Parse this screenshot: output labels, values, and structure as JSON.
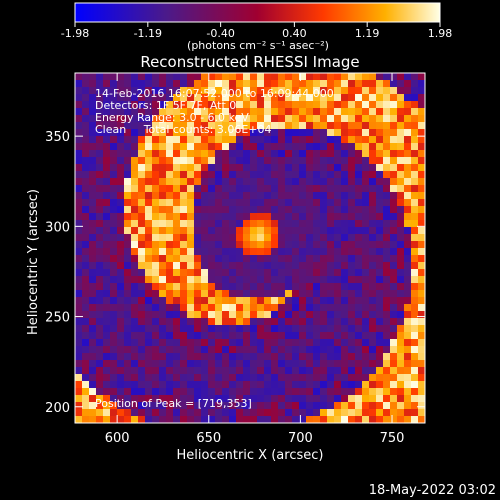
{
  "chart_data": {
    "type": "heatmap",
    "title": "Reconstructed RHESSI Image",
    "colorbar": {
      "ticks": [
        "-1.98",
        "-1.19",
        "-0.40",
        "0.40",
        "1.19",
        "1.98"
      ],
      "range": [
        -1.98,
        1.98
      ],
      "unit_label": "(photons cm⁻² s⁻¹ asec⁻²)",
      "colormap": [
        "#0000ff",
        "#4b0082",
        "#b00030",
        "#ff3000",
        "#ffb000",
        "#ffffe0"
      ]
    },
    "xlabel": "Heliocentric X (arcsec)",
    "ylabel": "Heliocentric Y (arcsec)",
    "xlim": [
      577,
      768
    ],
    "ylim": [
      191,
      385
    ],
    "xticks": [
      600,
      650,
      700,
      750
    ],
    "yticks": [
      200,
      250,
      300,
      350
    ],
    "info_lines": [
      "14-Feb-2016 16:07:52.000 to 16:09:44.000",
      "Detectors: 1F 5F 7F, Att 0",
      "Energy Range: 3.0 - 6.0 keV",
      "Clean     Total counts: 3.06E+04"
    ],
    "peak_text": "Position of Peak = [719,353]",
    "peak_position": [
      719,
      353
    ],
    "grid": false
  },
  "footer": {
    "date": "18-May-2022 03:02"
  }
}
